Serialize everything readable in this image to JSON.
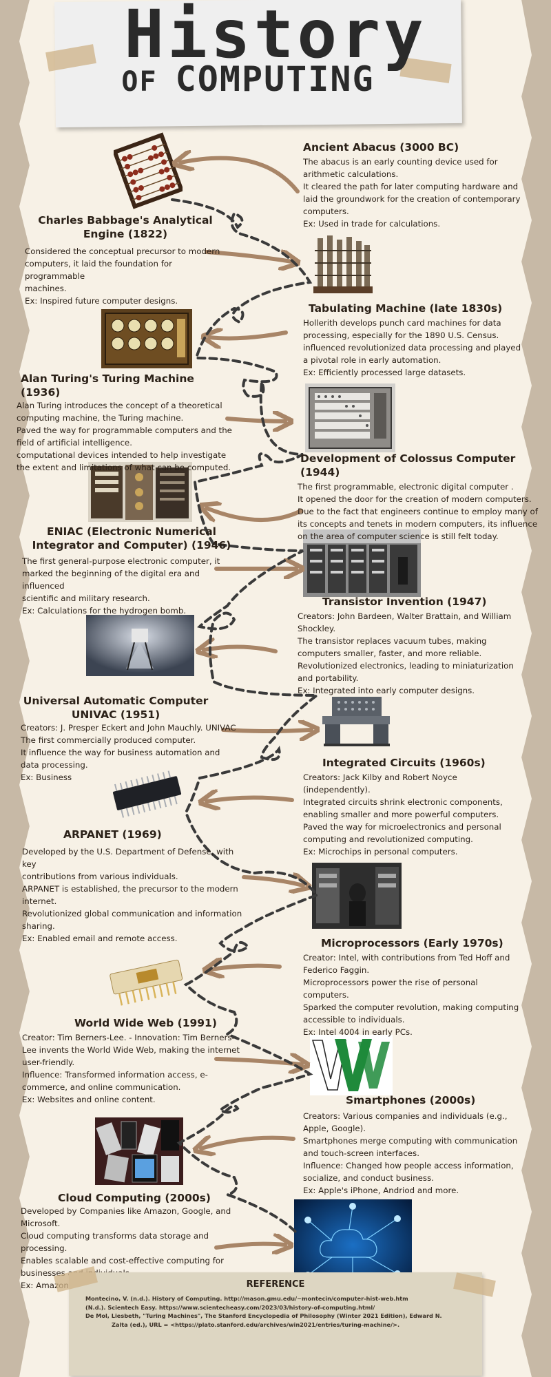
{
  "header": {
    "title": "History",
    "subtitle_first": "OF",
    "subtitle_rest": "COMPUTING"
  },
  "entries": [
    {
      "title": "Ancient Abacus (3000 BC)",
      "lines": [
        "The abacus is an early counting device used for",
        "arithmetic calculations.",
        "It cleared the path for later computing hardware and",
        "laid the groundwork for the creation of contemporary",
        "computers.",
        "Ex: Used in trade for calculations."
      ]
    },
    {
      "title": "Charles Babbage's Analytical Engine (1822)",
      "lines": [
        "Considered the conceptual precursor to modern",
        "computers, it laid the foundation for programmable",
        "machines.",
        "Ex: Inspired future computer designs."
      ]
    },
    {
      "title": "Tabulating Machine (late 1830s)",
      "lines": [
        "Hollerith develops punch card machines for data",
        "processing, especially for the 1890 U.S. Census.",
        "influenced revolutionized data processing and played",
        "a pivotal role in early automation.",
        "Ex: Efficiently processed large datasets."
      ]
    },
    {
      "title": "Alan Turing's Turing Machine (1936)",
      "lines": [
        "Alan Turing introduces the concept of a theoretical",
        "computing machine, the Turing machine.",
        "Paved the way for programmable computers and the",
        "field of artificial intelligence.",
        "computational devices intended to help investigate",
        "the extent and limitations of what can be computed."
      ]
    },
    {
      "title": "Development of Colossus Computer (1944)",
      "lines": [
        "The first programmable, electronic digital computer .",
        "It opened the door for the creation of modern computers.",
        "Due to the fact that engineers continue to employ many of",
        "its concepts and tenets in modern computers, its influence",
        "on the area of computer science is still felt today."
      ]
    },
    {
      "title": "ENIAC (Electronic Numerical Integrator and Computer) (1946)",
      "lines": [
        "The first general-purpose electronic computer, it",
        "marked the beginning of the digital era and influenced",
        "scientific and military research.",
        "Ex: Calculations for the hydrogen bomb."
      ]
    },
    {
      "title": "Transistor Invention (1947)",
      "lines": [
        "Creators: John Bardeen, Walter Brattain, and William",
        "Shockley.",
        "The transistor replaces vacuum tubes, making",
        "computers smaller, faster, and more reliable.",
        " Revolutionized electronics, leading to miniaturization",
        "and portability.",
        "Ex: Integrated into early computer designs."
      ]
    },
    {
      "title": "Universal Automatic Computer UNIVAC  (1951)",
      "lines": [
        "Creators: J. Presper Eckert and John Mauchly. UNIVAC",
        "The first commercially produced computer.",
        "It influence the way for business automation and",
        "data processing.",
        "Ex: Business"
      ]
    },
    {
      "title": "Integrated Circuits (1960s)",
      "lines": [
        " Creators: Jack Kilby and Robert Noyce",
        "(independently).",
        "Integrated circuits shrink electronic components,",
        "enabling smaller and more powerful computers.",
        "Paved the way for microelectronics and personal",
        "computing and revolutionized computing.",
        "Ex: Microchips in personal computers."
      ]
    },
    {
      "title": "ARPANET (1969)",
      "lines": [
        "Developed by the U.S. Department of Defense, with key",
        "contributions from various individuals.",
        "ARPANET is established, the precursor to the modern",
        "internet.",
        "Revolutionized global communication and information",
        "sharing.",
        "Ex: Enabled email and remote access."
      ]
    },
    {
      "title": "Microprocessors (Early 1970s)",
      "lines": [
        "Creator: Intel, with contributions from Ted Hoff and",
        "Federico Faggin.",
        "Microprocessors power the rise of personal",
        "computers.",
        "Sparked the computer revolution, making computing",
        "accessible to individuals.",
        " Ex: Intel 4004 in early PCs."
      ]
    },
    {
      "title": "World Wide Web (1991)",
      "lines": [
        "Creator: Tim Berners-Lee. - Innovation: Tim Berners-",
        "Lee invents the World Wide Web, making the internet",
        "user-friendly.",
        "Influence: Transformed information access, e-",
        "commerce, and online communication.",
        "Ex: Websites and online content."
      ]
    },
    {
      "title": "Smartphones (2000s)",
      "lines": [
        "Creators: Various companies and individuals (e.g.,",
        "Apple, Google).",
        "Smartphones merge computing with communication",
        "and touch-screen interfaces.",
        "Influence: Changed how people access information,",
        "socialize, and conduct business.",
        "Ex: Apple's iPhone, Andriod and more."
      ]
    },
    {
      "title": "Cloud Computing (2000s)",
      "lines": [
        "Developed by Companies like Amazon, Google, and",
        "Microsoft.",
        "Cloud computing transforms data storage and",
        "processing.",
        "Enables scalable and cost-effective computing for",
        "businesses and individuals.",
        " Ex: Amazon Web Services (AWS)."
      ]
    }
  ],
  "reference": {
    "title": "REFERENCE",
    "lines": [
      "Montecino, V. (n.d.). History of Computing. http://mason.gmu.edu/~montecin/computer-hist-web.htm",
      "(N.d.). Scientech Easy. https://www.scientecheasy.com/2023/03/history-of-computing.html/",
      "De Mol, Liesbeth, \"Turing Machines\", The Stanford Encyclopedia of Philosophy (Winter 2021 Edition), Edward N.",
      "Zalta (ed.), URL = <https://plato.stanford.edu/archives/win2021/entries/turing-machine/>."
    ]
  },
  "images": [
    {
      "name": "abacus-image",
      "subject": "abacus"
    },
    {
      "name": "analytical-engine-image",
      "subject": "analytical engine"
    },
    {
      "name": "tabulating-machine-image",
      "subject": "tabulating machine"
    },
    {
      "name": "turing-machine-image",
      "subject": "turing machine"
    },
    {
      "name": "colossus-image",
      "subject": "colossus computer"
    },
    {
      "name": "eniac-image",
      "subject": "eniac"
    },
    {
      "name": "transistor-image",
      "subject": "transistor"
    },
    {
      "name": "univac-image",
      "subject": "univac"
    },
    {
      "name": "integrated-circuit-image",
      "subject": "integrated circuit chip"
    },
    {
      "name": "arpanet-image",
      "subject": "arpanet"
    },
    {
      "name": "microprocessor-image",
      "subject": "microprocessor"
    },
    {
      "name": "www-logo-image",
      "subject": "world wide web logo"
    },
    {
      "name": "smartphones-image",
      "subject": "smartphones"
    },
    {
      "name": "cloud-computing-image",
      "subject": "cloud computing"
    }
  ],
  "colors": {
    "paper": "#f7f1e6",
    "background": "#c7b9a6",
    "arrow": "#a88567",
    "text": "#2b2118",
    "dashed_path": "#3a3a3a",
    "www_green": "#1f8a3b"
  }
}
